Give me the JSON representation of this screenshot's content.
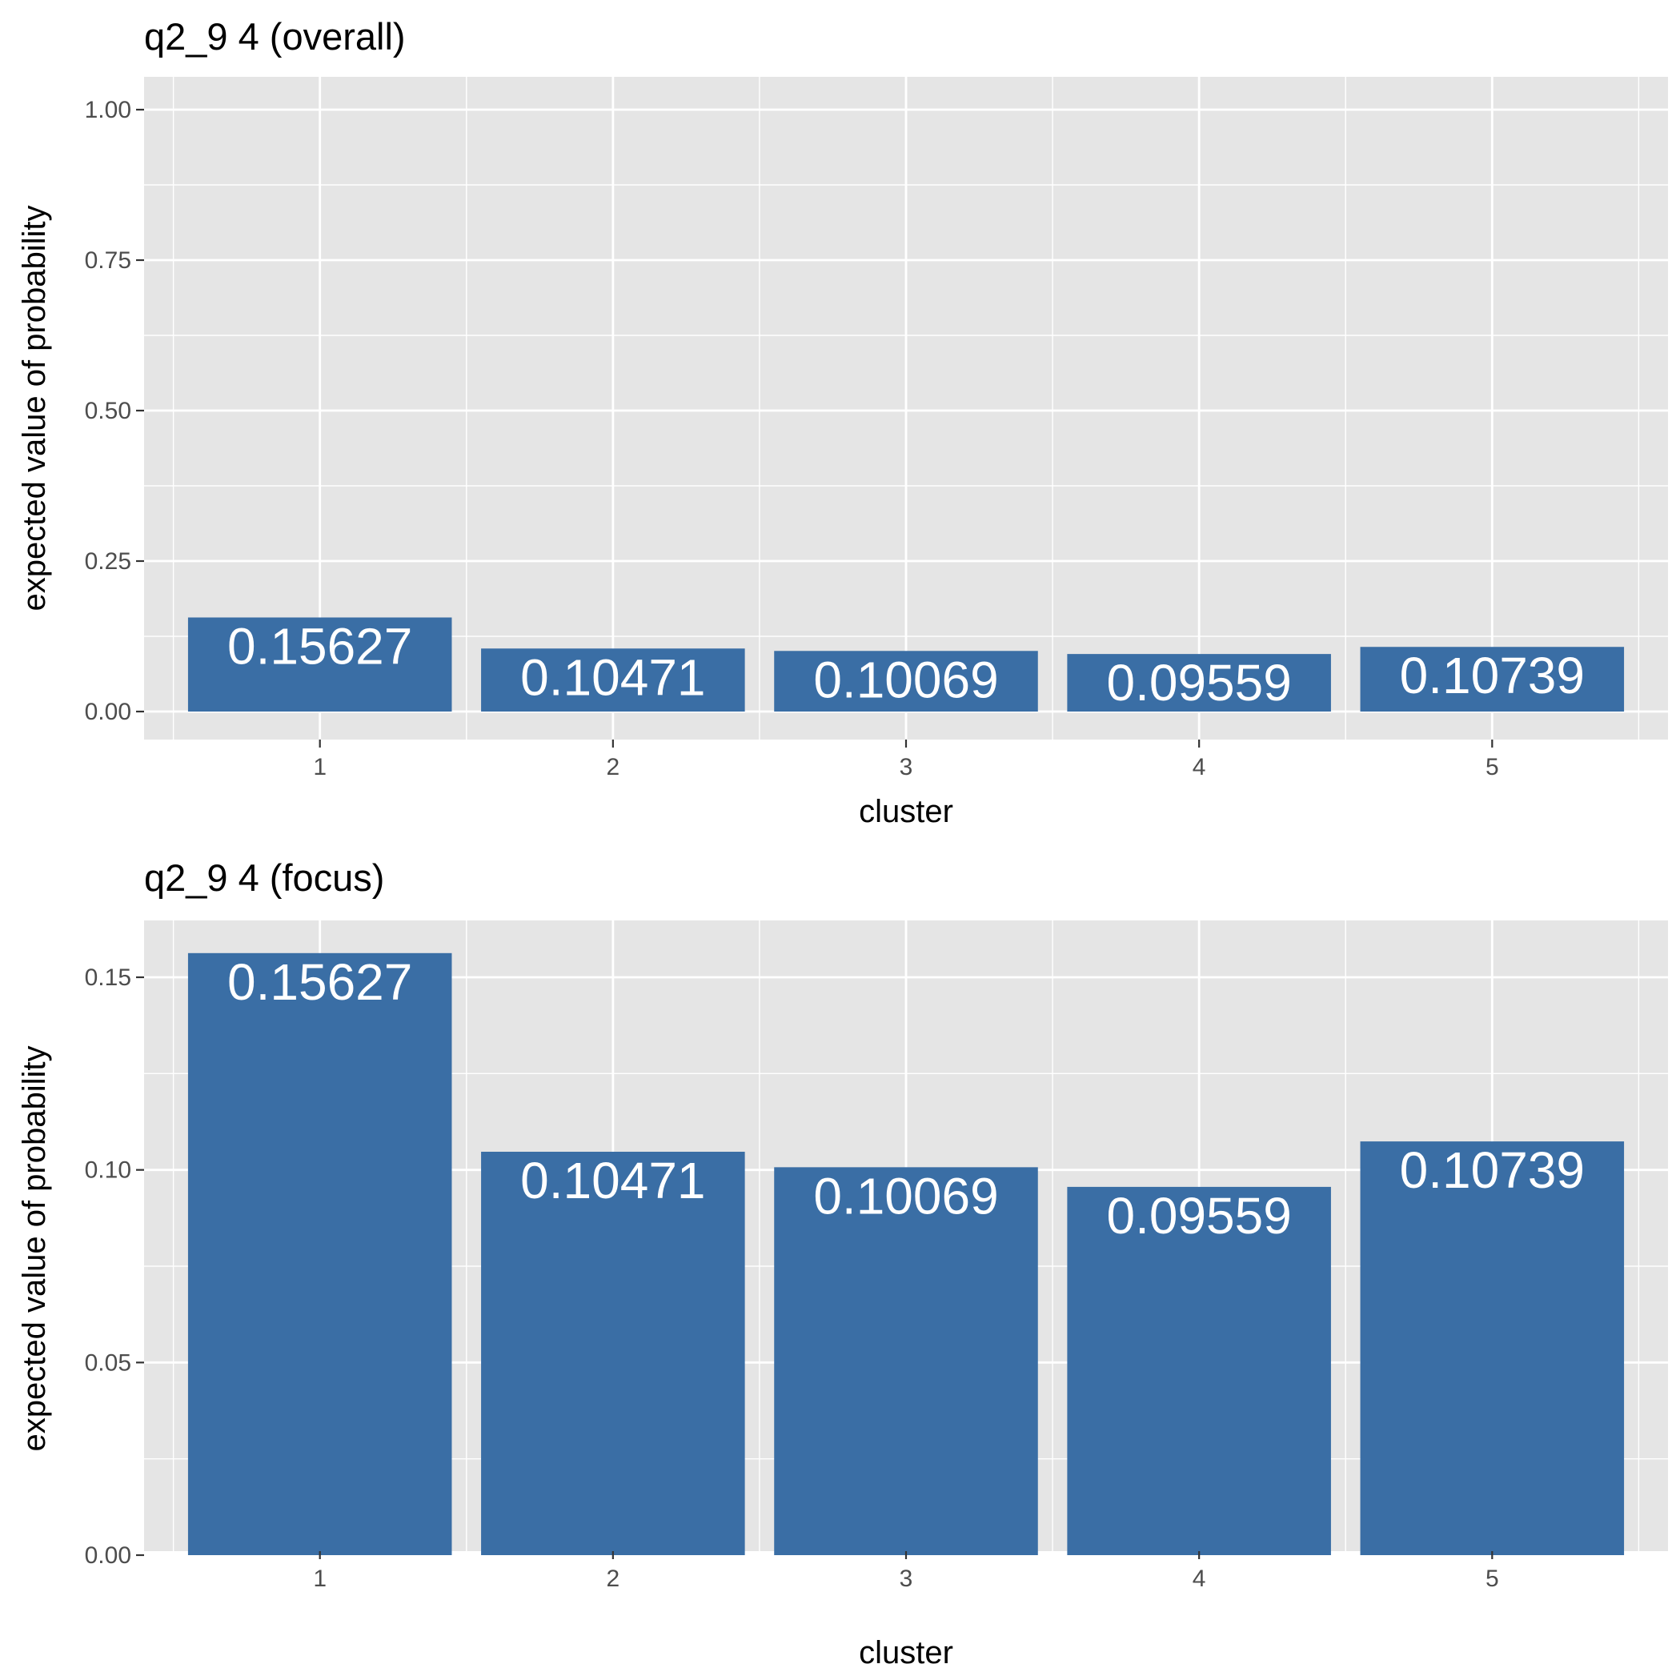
{
  "colors": {
    "panel_background": "#e5e5e5",
    "grid": "#ffffff",
    "bar": "#3a6ea5",
    "bar_label": "#ffffff",
    "tick": "#333333"
  },
  "chart_data": [
    {
      "type": "bar",
      "title": "q2_9 4  (overall)",
      "xlabel": "cluster",
      "ylabel": "expected value of probability",
      "categories": [
        "1",
        "2",
        "3",
        "4",
        "5"
      ],
      "values": [
        0.15627,
        0.10471,
        0.10069,
        0.09559,
        0.10739
      ],
      "value_labels": [
        "0.15627",
        "0.10471",
        "0.10069",
        "0.09559",
        "0.10739"
      ],
      "ylim": [
        0,
        1
      ],
      "yticks": [
        0,
        0.25,
        0.5,
        0.75,
        1
      ],
      "ytick_labels": [
        "0.00",
        "0.25",
        "0.50",
        "0.75",
        "1.00"
      ],
      "grid": true,
      "legend": "none"
    },
    {
      "type": "bar",
      "title": "q2_9 4 (focus)",
      "xlabel": "cluster",
      "ylabel": "expected value of probability",
      "categories": [
        "1",
        "2",
        "3",
        "4",
        "5"
      ],
      "values": [
        0.15627,
        0.10471,
        0.10069,
        0.09559,
        0.10739
      ],
      "value_labels": [
        "0.15627",
        "0.10471",
        "0.10069",
        "0.09559",
        "0.10739"
      ],
      "ylim": [
        0,
        0.16
      ],
      "yticks": [
        0,
        0.05,
        0.1,
        0.15
      ],
      "ytick_labels": [
        "0.00",
        "0.05",
        "0.10",
        "0.15"
      ],
      "grid": true,
      "legend": "none"
    }
  ]
}
